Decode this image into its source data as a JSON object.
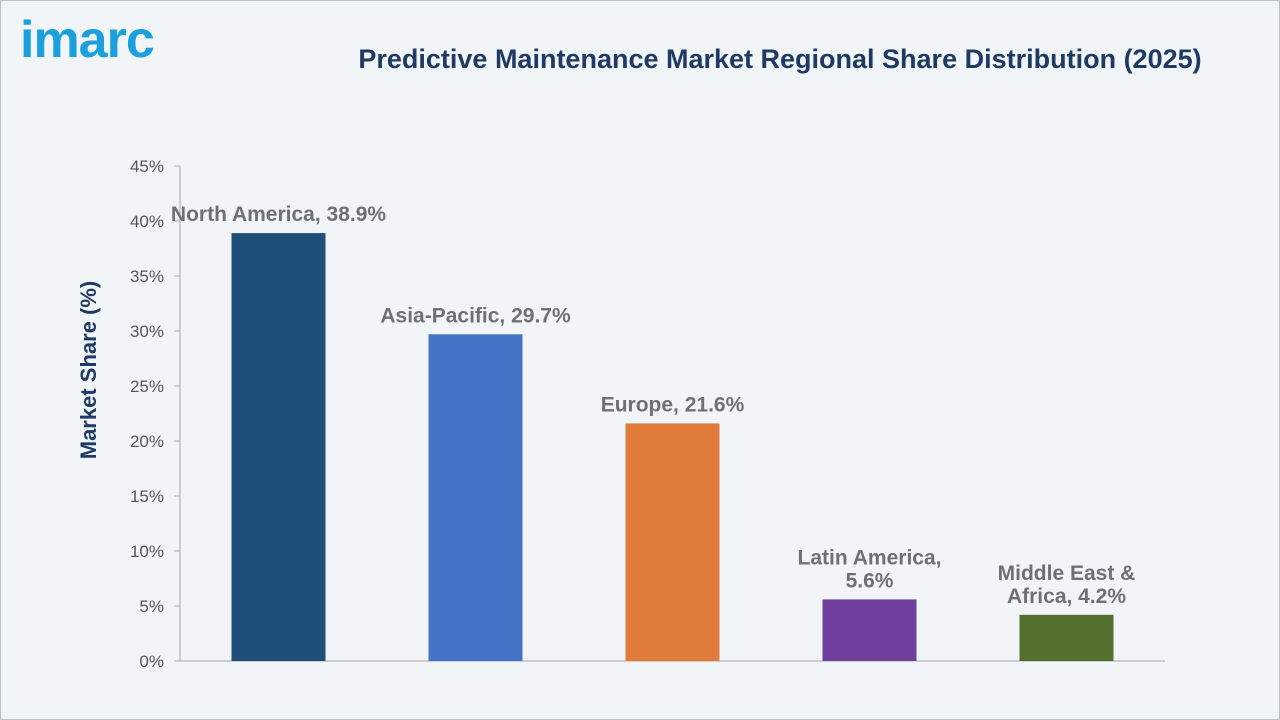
{
  "logo": {
    "text": "imarc"
  },
  "chart_data": {
    "type": "bar",
    "title": "Predictive Maintenance Market Regional Share Distribution (2025)",
    "ylabel": "Market Share (%)",
    "xlabel": "",
    "ylim": [
      0,
      45
    ],
    "yticks": [
      0,
      5,
      10,
      15,
      20,
      25,
      30,
      35,
      40,
      45
    ],
    "ytick_labels": [
      "0%",
      "5%",
      "10%",
      "15%",
      "20%",
      "25%",
      "30%",
      "35%",
      "40%",
      "45%"
    ],
    "grid": false,
    "categories": [
      "North America",
      "Asia-Pacific",
      "Europe",
      "Latin America",
      "Middle East & Africa"
    ],
    "values": [
      38.9,
      29.7,
      21.6,
      5.6,
      4.2
    ],
    "data_labels": [
      [
        "North America, 38.9%"
      ],
      [
        "Asia-Pacific, 29.7%"
      ],
      [
        "Europe, 21.6%"
      ],
      [
        "Latin America,",
        "5.6%"
      ],
      [
        "Middle East &",
        "Africa, 4.2%"
      ]
    ],
    "colors": [
      "#1f4e79",
      "#4472c4",
      "#e07b39",
      "#6f3fa0",
      "#54702e"
    ]
  }
}
